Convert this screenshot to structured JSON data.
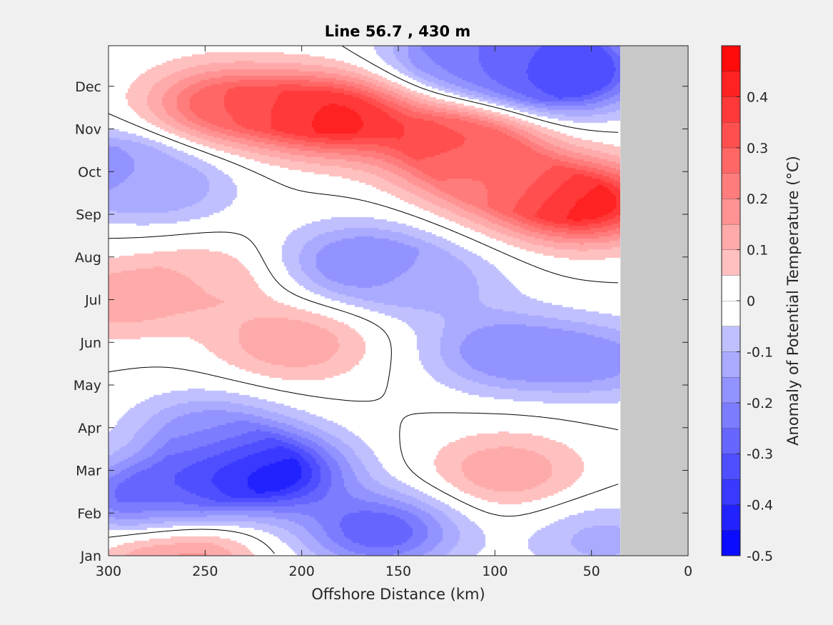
{
  "chart_data": {
    "type": "heatmap",
    "title": "Line 56.7 , 430 m",
    "xlabel": "Offshore Distance (km)",
    "ylabel": "",
    "xlim": [
      300,
      0
    ],
    "xticks": [
      300,
      250,
      200,
      150,
      100,
      50,
      0
    ],
    "xtick_labels": [
      "300",
      "250",
      "200",
      "150",
      "100",
      "50",
      "0"
    ],
    "y_categories": [
      "Jan",
      "Feb",
      "Mar",
      "Apr",
      "May",
      "Jun",
      "Jul",
      "Aug",
      "Sep",
      "Oct",
      "Nov",
      "Dec"
    ],
    "no_data_region_km": [
      0,
      35
    ],
    "colorbar": {
      "label": "Anomaly of Potential Temperature (°C)",
      "range": [
        -0.5,
        0.5
      ],
      "step": 0.05,
      "tick_values": [
        0.4,
        0.3,
        0.2,
        0.1,
        0,
        -0.1,
        -0.2,
        -0.3,
        -0.4,
        -0.5
      ],
      "tick_labels": [
        "0.4",
        "0.3",
        "0.2",
        "0.1",
        "0",
        "-0.1",
        "-0.2",
        "-0.3",
        "-0.4",
        "-0.5"
      ]
    },
    "field_features": [
      {
        "x_km": 185,
        "month": 11.35,
        "anomaly": 0.45
      },
      {
        "x_km": 240,
        "month": 11.6,
        "anomaly": 0.3
      },
      {
        "x_km": 120,
        "month": 10.7,
        "anomaly": 0.35
      },
      {
        "x_km": 55,
        "month": 9.3,
        "anomaly": 0.47
      },
      {
        "x_km": 100,
        "month": 9.8,
        "anomaly": 0.2
      },
      {
        "x_km": 265,
        "month": 1.0,
        "anomaly": 0.2
      },
      {
        "x_km": 300,
        "month": 7.0,
        "anomaly": 0.13
      },
      {
        "x_km": 205,
        "month": 6.0,
        "anomaly": 0.15
      },
      {
        "x_km": 250,
        "month": 7.5,
        "anomaly": 0.1
      },
      {
        "x_km": 95,
        "month": 3.0,
        "anomaly": 0.15
      },
      {
        "x_km": 300,
        "month": 10.1,
        "anomaly": -0.2
      },
      {
        "x_km": 270,
        "month": 9.6,
        "anomaly": -0.1
      },
      {
        "x_km": 170,
        "month": 7.9,
        "anomaly": -0.22
      },
      {
        "x_km": 130,
        "month": 7.4,
        "anomaly": -0.1
      },
      {
        "x_km": 95,
        "month": 5.8,
        "anomaly": -0.2
      },
      {
        "x_km": 45,
        "month": 5.6,
        "anomaly": -0.16
      },
      {
        "x_km": 220,
        "month": 3.0,
        "anomaly": -0.48
      },
      {
        "x_km": 280,
        "month": 2.4,
        "anomaly": -0.3
      },
      {
        "x_km": 160,
        "month": 1.6,
        "anomaly": -0.3
      },
      {
        "x_km": 250,
        "month": 4.0,
        "anomaly": -0.16
      },
      {
        "x_km": 65,
        "month": 12.3,
        "anomaly": -0.38
      },
      {
        "x_km": 85,
        "month": 12.9,
        "anomaly": -0.3
      },
      {
        "x_km": 120,
        "month": 12.7,
        "anomaly": -0.2
      },
      {
        "x_km": 45,
        "month": 1.4,
        "anomaly": -0.12
      }
    ],
    "grid": false
  },
  "colors": {
    "figure_background": "#f0f0f0",
    "axes_background": "#ffffff",
    "no_data": "#c8c8c8",
    "zero_contour": "#000000"
  }
}
